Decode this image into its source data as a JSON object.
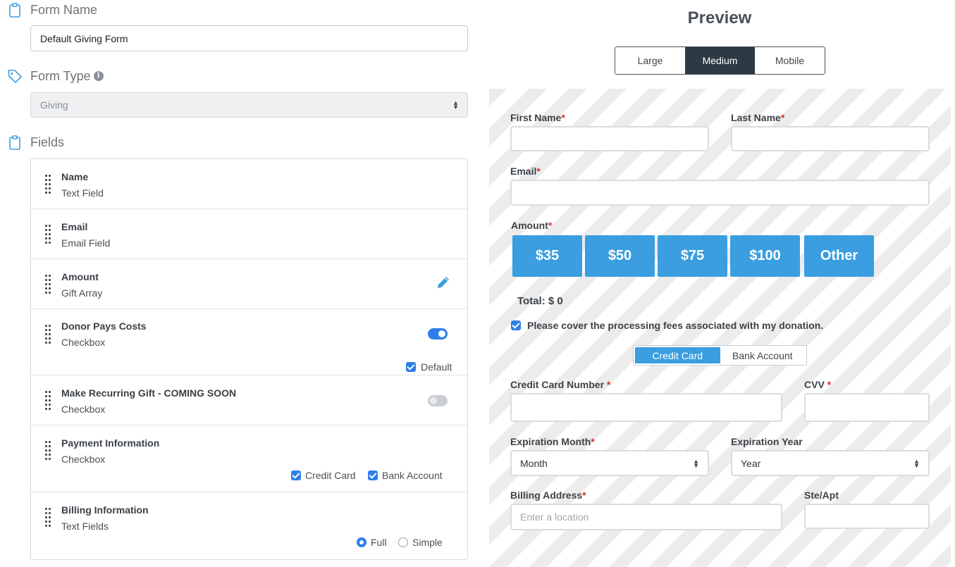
{
  "left": {
    "form_name": {
      "label": "Form Name",
      "value": "Default Giving Form"
    },
    "form_type": {
      "label": "Form Type",
      "selected": "Giving"
    },
    "fields": {
      "label": "Fields",
      "items": [
        {
          "name": "Name",
          "type": "Text Field"
        },
        {
          "name": "Email",
          "type": "Email Field"
        },
        {
          "name": "Amount",
          "type": "Gift Array"
        },
        {
          "name": "Donor Pays Costs",
          "type": "Checkbox",
          "toggle": "on",
          "default_label": "Default",
          "default_checked": true
        },
        {
          "name": "Make Recurring Gift - COMING SOON",
          "type": "Checkbox",
          "toggle": "off"
        },
        {
          "name": "Payment Information",
          "type": "Checkbox",
          "options": [
            {
              "label": "Credit Card",
              "checked": true
            },
            {
              "label": "Bank Account",
              "checked": true
            }
          ]
        },
        {
          "name": "Billing Information",
          "type": "Text Fields",
          "radios": [
            {
              "label": "Full",
              "checked": true
            },
            {
              "label": "Simple",
              "checked": false
            }
          ]
        }
      ]
    }
  },
  "preview": {
    "title": "Preview",
    "size_tabs": [
      {
        "label": "Large"
      },
      {
        "label": "Medium",
        "active": true
      },
      {
        "label": "Mobile"
      }
    ],
    "form": {
      "first_name": "First Name",
      "last_name": "Last Name",
      "email": "Email",
      "amount": "Amount",
      "required_mark": "*",
      "amount_options": [
        "$35",
        "$50",
        "$75",
        "$100",
        "Other"
      ],
      "total": "Total: $ 0",
      "fees_text": "Please cover the processing fees associated with my donation.",
      "payment_tabs": [
        {
          "label": "Credit Card",
          "active": true
        },
        {
          "label": "Bank Account"
        }
      ],
      "card_number": "Credit Card Number",
      "cvv": "CVV",
      "exp_month": "Expiration Month",
      "exp_month_value": "Month",
      "exp_year": "Expiration Year",
      "exp_year_value": "Year",
      "billing_address": "Billing Address",
      "billing_placeholder": "Enter a location",
      "ste_apt": "Ste/Apt"
    }
  },
  "colors": {
    "accent": "#2d7ee8",
    "amount_button": "#3a9ee0",
    "active_tab": "#2c3a44",
    "required": "#d0342c"
  }
}
